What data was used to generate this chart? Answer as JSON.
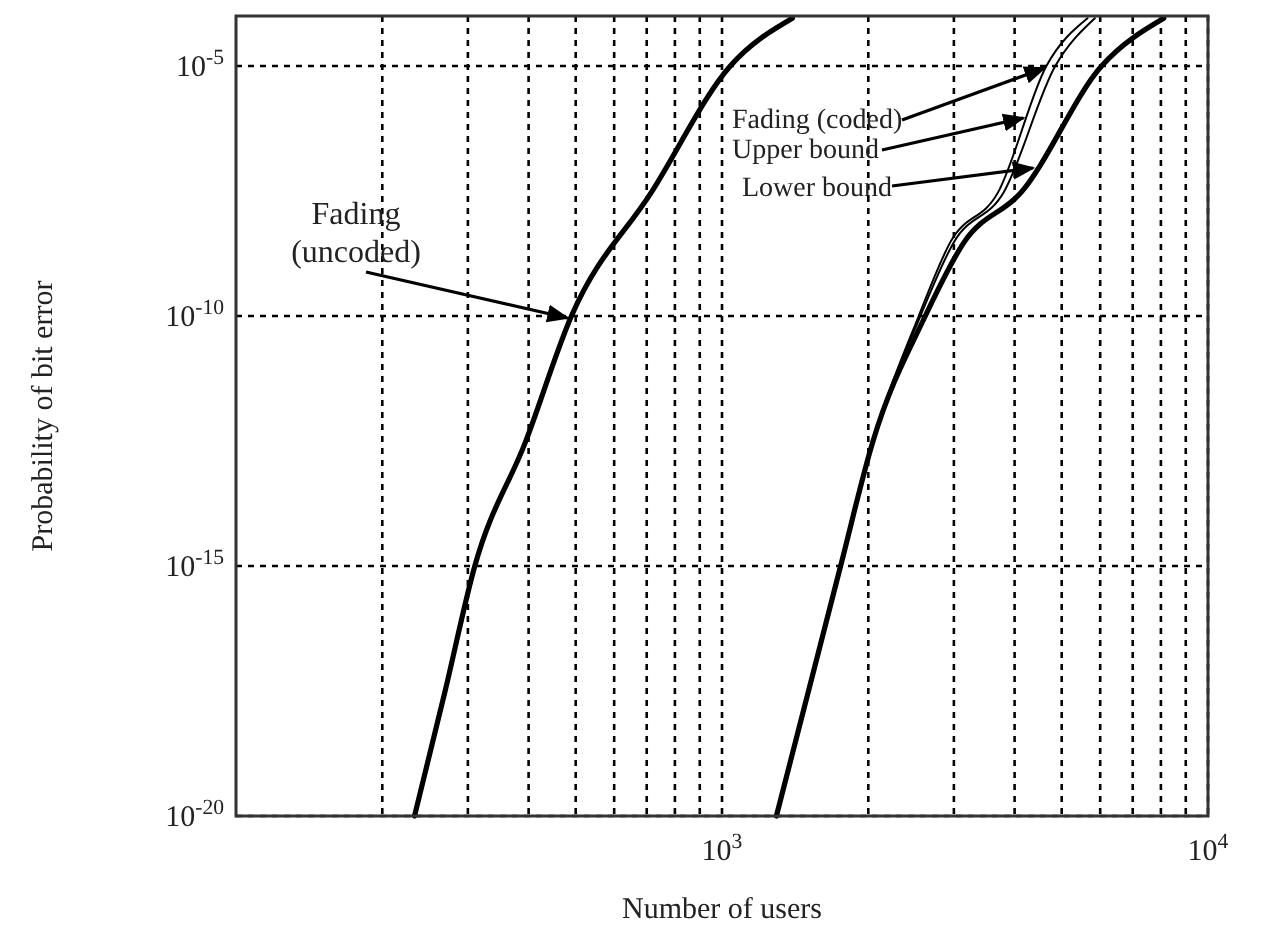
{
  "chart_data": {
    "type": "line",
    "xlabel": "Number of users",
    "ylabel": "Probability of bit error",
    "log": "xy",
    "grid": true,
    "line_style": "solid",
    "xlim": [
      100,
      10000
    ],
    "ylim": [
      1e-20,
      0.0001
    ],
    "xticks": [
      {
        "value": 200,
        "label": null
      },
      {
        "value": 300,
        "label": null
      },
      {
        "value": 400,
        "label": null
      },
      {
        "value": 500,
        "label": null
      },
      {
        "value": 600,
        "label": null
      },
      {
        "value": 700,
        "label": null
      },
      {
        "value": 800,
        "label": null
      },
      {
        "value": 900,
        "label": null
      },
      {
        "value": 1000,
        "label": "10$^{3}$"
      },
      {
        "value": 2000,
        "label": null
      },
      {
        "value": 3000,
        "label": null
      },
      {
        "value": 4000,
        "label": null
      },
      {
        "value": 5000,
        "label": null
      },
      {
        "value": 6000,
        "label": null
      },
      {
        "value": 7000,
        "label": null
      },
      {
        "value": 8000,
        "label": null
      },
      {
        "value": 9000,
        "label": null
      },
      {
        "value": 10000,
        "label": "10$^{4}$"
      }
    ],
    "yticks": [
      {
        "value": 1e-20,
        "label": "10$^{-20}$"
      },
      {
        "value": 1e-15,
        "label": "10$^{-15}$"
      },
      {
        "value": 1e-10,
        "label": "10$^{-10}$"
      },
      {
        "value": 1e-05,
        "label": "10$^{-5}$"
      }
    ],
    "annotations": [
      {
        "text": "Fading (uncoded)",
        "x": 490,
        "y": 1e-10
      },
      {
        "text": "Fading (coded)",
        "x": 4700,
        "y": 1e-05
      },
      {
        "text": "Upper bound",
        "x": 4250,
        "y": 1e-06
      },
      {
        "text": "Lower bound",
        "x": 4450,
        "y": 1e-07
      }
    ],
    "series": [
      {
        "color": "#000000",
        "x": [
          233,
          269,
          310,
          394,
          490,
          716,
          1040,
          1396
        ],
        "values": [
          1e-20,
          3e-18,
          1e-15,
          3e-13,
          1e-10,
          3e-08,
          1e-05,
          9e-05
        ]
      },
      {
        "color": "#000000",
        "x": [
          1294,
          1754,
          2042,
          2560,
          3000,
          3800,
          4850,
          5850
        ],
        "values": [
          1e-20,
          1e-15,
          3e-13,
          1e-10,
          3e-09,
          3e-08,
          1e-05,
          9e-05
        ]
      },
      {
        "color": "#000000",
        "x": [
          1294,
          1754,
          2042,
          2540,
          2950,
          3700,
          4650,
          5650
        ],
        "values": [
          1e-20,
          1e-15,
          3e-13,
          1e-10,
          3e-09,
          3e-08,
          1e-05,
          9e-05
        ]
      },
      {
        "color": "#000000",
        "x": [
          1294,
          1754,
          2042,
          2620,
          3150,
          4130,
          6040,
          8110
        ],
        "values": [
          1e-20,
          1e-15,
          3e-13,
          1e-10,
          3e-09,
          3e-08,
          1e-05,
          9e-05
        ]
      }
    ]
  }
}
